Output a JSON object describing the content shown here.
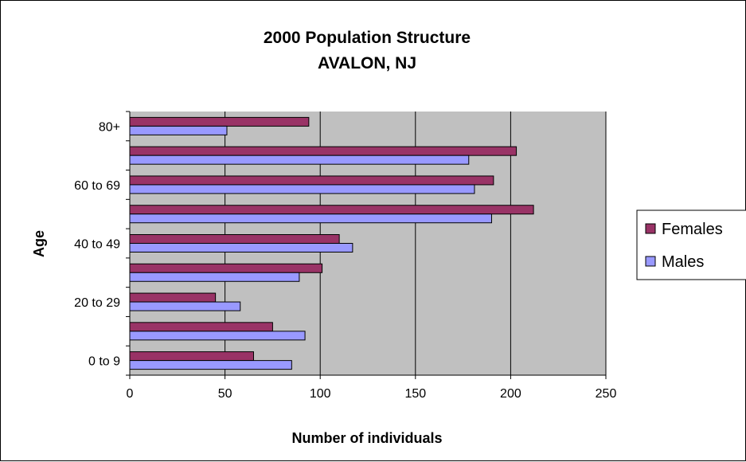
{
  "chart_data": {
    "type": "bar",
    "orientation": "horizontal",
    "title": "2000 Population Structure",
    "subtitle": "AVALON, NJ",
    "xlabel": "Number of individuals",
    "ylabel": "Age",
    "xlim": [
      0,
      250
    ],
    "x_ticks": [
      0,
      50,
      100,
      150,
      200,
      250
    ],
    "category_tick_labels": [
      "0 to 9",
      "",
      "20 to 29",
      "",
      "40 to 49",
      "",
      "60 to 69",
      "",
      "80+"
    ],
    "grid": "vertical",
    "legend_position": "right",
    "plot_background": "#c0c0c0",
    "series": [
      {
        "name": "Females",
        "color": "#993366",
        "values": [
          65,
          75,
          45,
          101,
          110,
          212,
          191,
          203,
          94
        ]
      },
      {
        "name": "Males",
        "color": "#9999ff",
        "values": [
          85,
          92,
          58,
          89,
          117,
          190,
          181,
          178,
          51
        ]
      }
    ]
  }
}
